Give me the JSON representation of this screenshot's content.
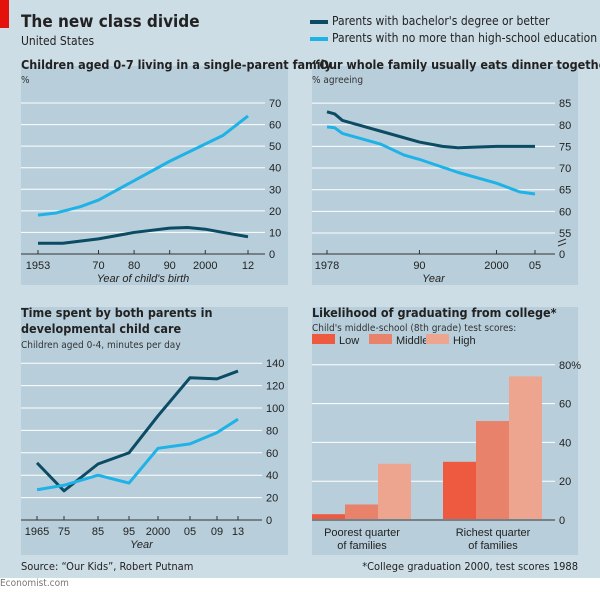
{
  "title": "The new class divide",
  "subtitle": "United States",
  "legend": [
    {
      "label": "Parents with bachelor's degree or better",
      "color": "#0b4b64"
    },
    {
      "label": "Parents with no more than high-school education",
      "color": "#1fb2e6"
    }
  ],
  "source": "Source: “Our Kids”, Robert Putnam",
  "footnote": "*College graduation 2000, test scores 1988",
  "credit": "Economist.com",
  "chart_data": [
    {
      "type": "line",
      "title": "Children aged 0-7 living in a single-parent family",
      "unit": "%",
      "xlabel": "Year of child's birth",
      "ylim": [
        0,
        70
      ],
      "yticks": [
        0,
        10,
        20,
        30,
        40,
        50,
        60,
        70
      ],
      "xticks": [
        {
          "v": 1953,
          "l": "1953"
        },
        {
          "v": 1970,
          "l": "70"
        },
        {
          "v": 1980,
          "l": "80"
        },
        {
          "v": 1990,
          "l": "90"
        },
        {
          "v": 2000,
          "l": "2000"
        },
        {
          "v": 2012,
          "l": "12"
        }
      ],
      "xlim": [
        1953,
        2012
      ],
      "series": [
        {
          "name": "Parents with bachelor's degree or better",
          "x": [
            1953,
            1960,
            1970,
            1980,
            1990,
            1995,
            2000,
            2005,
            2012
          ],
          "y": [
            5,
            5,
            7,
            10,
            12,
            12.3,
            11.5,
            10,
            8
          ]
        },
        {
          "name": "Parents with no more than high-school education",
          "x": [
            1953,
            1958,
            1965,
            1970,
            1980,
            1990,
            2000,
            2005,
            2012
          ],
          "y": [
            18,
            19,
            22,
            25,
            34,
            43,
            51,
            55,
            64
          ]
        }
      ]
    },
    {
      "type": "line",
      "title": "“Our whole family usually eats dinner together”",
      "unit": "% agreeing",
      "xlabel": "Year",
      "ylim": [
        55,
        85
      ],
      "yticks": [
        55,
        60,
        65,
        70,
        75,
        80,
        85
      ],
      "xticks": [
        {
          "v": 1978,
          "l": "1978"
        },
        {
          "v": 1990,
          "l": "90"
        },
        {
          "v": 2000,
          "l": "2000"
        },
        {
          "v": 2005,
          "l": "05"
        }
      ],
      "xlim": [
        1978,
        2005
      ],
      "axis_break_label": "0",
      "series": [
        {
          "name": "Parents with bachelor's degree or better",
          "x": [
            1978,
            1979,
            1980,
            1985,
            1990,
            1993,
            1995,
            2000,
            2005
          ],
          "y": [
            83,
            82.5,
            81,
            78.5,
            76,
            75,
            74.7,
            75,
            75
          ]
        },
        {
          "name": "Parents with no more than high-school education",
          "x": [
            1978,
            1979,
            1980,
            1985,
            1988,
            1990,
            1995,
            2000,
            2003,
            2005
          ],
          "y": [
            79.5,
            79.3,
            78,
            75.5,
            73,
            72,
            69,
            66.5,
            64.5,
            64
          ]
        }
      ]
    },
    {
      "type": "line",
      "title": "Time spent by both parents in developmental child care",
      "unit": "Children aged 0-4, minutes per day",
      "xlabel": "Year",
      "ylim": [
        0,
        140
      ],
      "yticks": [
        0,
        20,
        40,
        60,
        80,
        100,
        120,
        140
      ],
      "categories": [
        "1965",
        "75",
        "85",
        "95",
        "2000",
        "05",
        "09",
        "13"
      ],
      "series": [
        {
          "name": "Parents with bachelor's degree or better",
          "values": [
            51,
            26,
            50,
            60,
            93,
            127,
            126,
            133
          ]
        },
        {
          "name": "Parents with no more than high-school education",
          "values": [
            27,
            31,
            40,
            33,
            64,
            68,
            78,
            90
          ]
        }
      ]
    },
    {
      "type": "bar",
      "title": "Likelihood of graduating from college*",
      "subtitle": "Child's middle-school (8th grade) test scores:",
      "ylim": [
        0,
        80
      ],
      "yticks": [
        {
          "v": 0,
          "l": "0"
        },
        {
          "v": 20,
          "l": "20"
        },
        {
          "v": 40,
          "l": "40"
        },
        {
          "v": 60,
          "l": "60"
        },
        {
          "v": 80,
          "l": "80%"
        }
      ],
      "categories": [
        "Poorest quarter|of families",
        "Richest quarter|of families"
      ],
      "series": [
        {
          "name": "Low",
          "color": "#ee5a40",
          "values": [
            3,
            30
          ]
        },
        {
          "name": "Middle",
          "color": "#e8826a",
          "values": [
            8,
            51
          ]
        },
        {
          "name": "High",
          "color": "#eea58f",
          "values": [
            29,
            74
          ]
        }
      ]
    }
  ]
}
